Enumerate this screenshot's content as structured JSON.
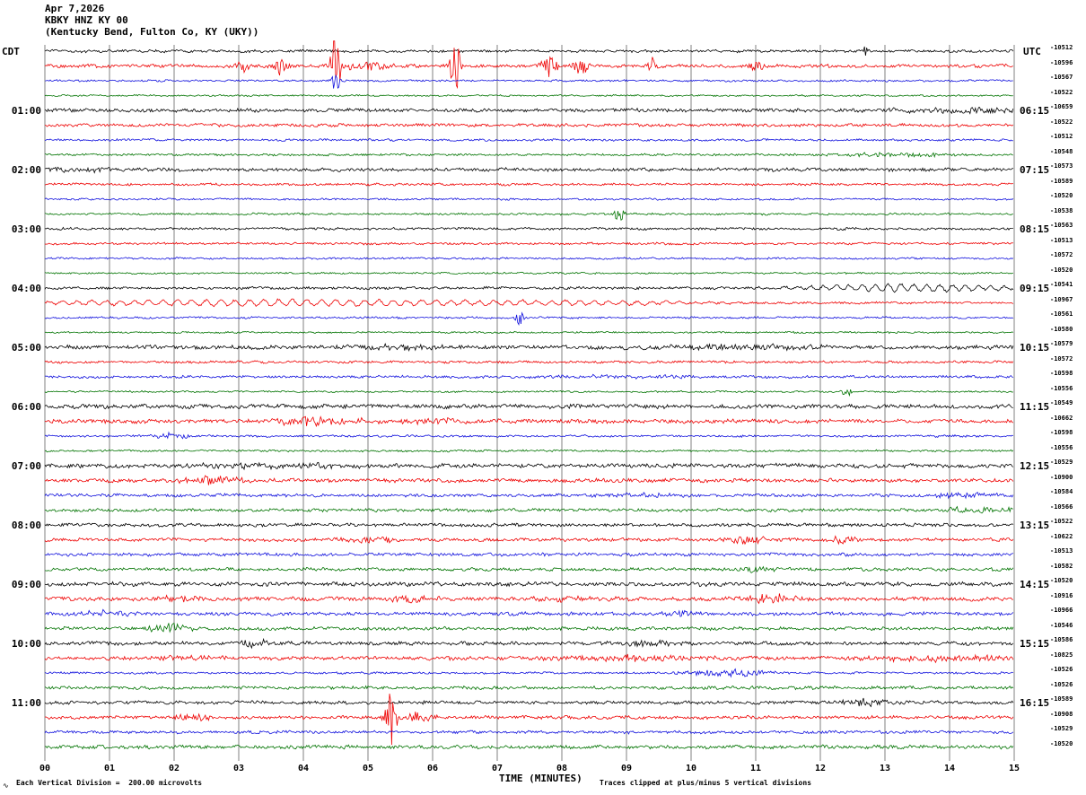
{
  "header": {
    "date": "Apr 7,2026",
    "station": "KBKY HNZ KY 00",
    "location": "(Kentucky Bend, Fulton Co, KY (UKY))"
  },
  "axes": {
    "left_tz": "CDT",
    "right_tz": "UTC",
    "x_label": "TIME (MINUTES)"
  },
  "footer": {
    "scale": "Each Vertical Division =  200.00 microvolts",
    "clip": "Traces clipped at plus/minus 5 vertical divisions",
    "corner_mark": "∿"
  },
  "chart_data": {
    "type": "line",
    "kind": "helicorder-seismogram",
    "title": "KBKY HNZ KY 00 (Kentucky Bend, Fulton Co, KY (UKY)) Apr 7,2026",
    "xlabel": "TIME (MINUTES)",
    "x_range_minutes": [
      0,
      15
    ],
    "minutes_per_row": 15,
    "division_microvolts": 200.0,
    "clip_divisions": 5,
    "grid": "vertical-only",
    "x_ticks": [
      "00",
      "01",
      "02",
      "03",
      "04",
      "05",
      "06",
      "07",
      "08",
      "09",
      "10",
      "11",
      "12",
      "13",
      "14",
      "15"
    ],
    "row_colors_cycle": [
      "black",
      "red",
      "blue",
      "green"
    ],
    "palette": {
      "black": "#000000",
      "red": "#ee0000",
      "blue": "#1111dd",
      "green": "#007300"
    },
    "left_hour_labels": [
      {
        "row": 4,
        "label": "01:00"
      },
      {
        "row": 8,
        "label": "02:00"
      },
      {
        "row": 12,
        "label": "03:00"
      },
      {
        "row": 16,
        "label": "04:00"
      },
      {
        "row": 20,
        "label": "05:00"
      },
      {
        "row": 24,
        "label": "06:00"
      },
      {
        "row": 28,
        "label": "07:00"
      },
      {
        "row": 32,
        "label": "08:00"
      },
      {
        "row": 36,
        "label": "09:00"
      },
      {
        "row": 40,
        "label": "10:00"
      },
      {
        "row": 44,
        "label": "11:00"
      }
    ],
    "right_hour_labels": [
      {
        "row": 4,
        "label": "06:15"
      },
      {
        "row": 8,
        "label": "07:15"
      },
      {
        "row": 12,
        "label": "08:15"
      },
      {
        "row": 16,
        "label": "09:15"
      },
      {
        "row": 20,
        "label": "10:15"
      },
      {
        "row": 24,
        "label": "11:15"
      },
      {
        "row": 28,
        "label": "12:15"
      },
      {
        "row": 32,
        "label": "13:15"
      },
      {
        "row": 36,
        "label": "14:15"
      },
      {
        "row": 40,
        "label": "15:15"
      },
      {
        "row": 44,
        "label": "16:15"
      }
    ],
    "rows": [
      {
        "color": "black",
        "offset": "-10512",
        "amp": 1.2,
        "events": [
          {
            "m": 12.7,
            "a": 7,
            "w": 0.05
          }
        ]
      },
      {
        "color": "red",
        "offset": "-10596",
        "amp": 1.5,
        "events": [
          {
            "m": 3.05,
            "a": 10,
            "w": 0.07
          },
          {
            "m": 3.65,
            "a": 12,
            "w": 0.06
          },
          {
            "m": 4.5,
            "a": 40,
            "w": 0.05
          },
          {
            "m": 5.0,
            "a": 5,
            "w": 0.3
          },
          {
            "m": 6.35,
            "a": 34,
            "w": 0.05
          },
          {
            "m": 7.8,
            "a": 14,
            "w": 0.09
          },
          {
            "m": 8.3,
            "a": 8,
            "w": 0.1
          },
          {
            "m": 9.4,
            "a": 10,
            "w": 0.07
          },
          {
            "m": 11.0,
            "a": 6,
            "w": 0.1
          }
        ]
      },
      {
        "color": "blue",
        "offset": "-10567",
        "amp": 0.9,
        "events": [
          {
            "m": 4.5,
            "a": 11,
            "w": 0.05
          }
        ]
      },
      {
        "color": "green",
        "offset": "-10522",
        "amp": 0.8,
        "events": []
      },
      {
        "color": "black",
        "offset": "-10659",
        "amp": 1.6,
        "events": [
          {
            "m": 14.2,
            "a": 3,
            "w": 0.7
          }
        ]
      },
      {
        "color": "red",
        "offset": "-10522",
        "amp": 1.4,
        "events": []
      },
      {
        "color": "blue",
        "offset": "-10512",
        "amp": 1.0,
        "events": []
      },
      {
        "color": "green",
        "offset": "-10548",
        "amp": 1.0,
        "events": [
          {
            "m": 13.0,
            "a": 2,
            "w": 0.8
          }
        ]
      },
      {
        "color": "black",
        "offset": "-10573",
        "amp": 1.6,
        "events": [
          {
            "m": 0.6,
            "a": 2.5,
            "w": 0.5
          }
        ]
      },
      {
        "color": "red",
        "offset": "-10589",
        "amp": 1.1,
        "events": []
      },
      {
        "color": "blue",
        "offset": "-10520",
        "amp": 0.9,
        "events": []
      },
      {
        "color": "green",
        "offset": "-10538",
        "amp": 0.9,
        "events": [
          {
            "m": 8.9,
            "a": 8,
            "w": 0.06
          }
        ]
      },
      {
        "color": "black",
        "offset": "-10563",
        "amp": 1.1,
        "events": []
      },
      {
        "color": "red",
        "offset": "-10513",
        "amp": 1.0,
        "events": []
      },
      {
        "color": "blue",
        "offset": "-10572",
        "amp": 0.9,
        "events": []
      },
      {
        "color": "green",
        "offset": "-10520",
        "amp": 0.8,
        "events": []
      },
      {
        "color": "black",
        "offset": "-10541",
        "amp": 1.2,
        "events": [
          {
            "t": "ring",
            "m": 13.3,
            "w": 1.1,
            "a": 4,
            "f": 5
          }
        ]
      },
      {
        "color": "red",
        "offset": "-10967",
        "amp": 1.0,
        "events": [
          {
            "t": "ring",
            "m": 3.5,
            "w": 3.0,
            "a": 3.2,
            "f": 4.5
          },
          {
            "t": "ring",
            "m": 8.5,
            "w": 1.5,
            "a": 1.5,
            "f": 4.5
          }
        ]
      },
      {
        "color": "blue",
        "offset": "-10561",
        "amp": 0.9,
        "events": [
          {
            "m": 7.35,
            "a": 9,
            "w": 0.05
          }
        ]
      },
      {
        "color": "green",
        "offset": "-10580",
        "amp": 0.8,
        "events": []
      },
      {
        "color": "black",
        "offset": "-10579",
        "amp": 1.8,
        "events": [
          {
            "m": 5.6,
            "a": 2,
            "w": 0.8
          },
          {
            "m": 10.8,
            "a": 2.5,
            "w": 1.2
          }
        ]
      },
      {
        "color": "red",
        "offset": "-10572",
        "amp": 1.1,
        "events": []
      },
      {
        "color": "blue",
        "offset": "-10598",
        "amp": 1.2,
        "events": [
          {
            "m": 9.0,
            "a": 1.5,
            "w": 1.0
          }
        ]
      },
      {
        "color": "green",
        "offset": "-10556",
        "amp": 0.8,
        "events": [
          {
            "m": 12.4,
            "a": 5,
            "w": 0.06
          }
        ]
      },
      {
        "color": "black",
        "offset": "-10549",
        "amp": 1.9,
        "events": []
      },
      {
        "color": "red",
        "offset": "-10662",
        "amp": 1.8,
        "events": [
          {
            "m": 4.2,
            "a": 5,
            "w": 0.5
          },
          {
            "m": 6.0,
            "a": 3,
            "w": 0.3
          }
        ]
      },
      {
        "color": "blue",
        "offset": "-10598",
        "amp": 1.0,
        "events": [
          {
            "m": 1.9,
            "a": 3.5,
            "w": 0.25
          }
        ]
      },
      {
        "color": "green",
        "offset": "-10556",
        "amp": 0.9,
        "events": []
      },
      {
        "color": "black",
        "offset": "-10529",
        "amp": 1.9,
        "events": [
          {
            "m": 3.5,
            "a": 2.5,
            "w": 1.0
          }
        ]
      },
      {
        "color": "red",
        "offset": "-10900",
        "amp": 1.7,
        "events": [
          {
            "m": 2.5,
            "a": 4,
            "w": 0.4
          }
        ]
      },
      {
        "color": "blue",
        "offset": "-10584",
        "amp": 1.4,
        "events": [
          {
            "m": 9.3,
            "a": 2,
            "w": 0.5
          },
          {
            "m": 14.2,
            "a": 3,
            "w": 0.3
          }
        ]
      },
      {
        "color": "green",
        "offset": "-10566",
        "amp": 1.4,
        "events": [
          {
            "m": 14.5,
            "a": 3,
            "w": 0.4
          }
        ]
      },
      {
        "color": "black",
        "offset": "-10522",
        "amp": 1.5,
        "events": []
      },
      {
        "color": "red",
        "offset": "-10622",
        "amp": 1.5,
        "events": [
          {
            "m": 5.0,
            "a": 3,
            "w": 0.4
          },
          {
            "m": 10.8,
            "a": 4,
            "w": 0.25
          },
          {
            "m": 12.4,
            "a": 4,
            "w": 0.2
          }
        ]
      },
      {
        "color": "blue",
        "offset": "-10513",
        "amp": 1.4,
        "events": []
      },
      {
        "color": "green",
        "offset": "-10582",
        "amp": 1.4,
        "events": [
          {
            "m": 11.0,
            "a": 3,
            "w": 0.3
          }
        ]
      },
      {
        "color": "black",
        "offset": "-10520",
        "amp": 1.8,
        "events": []
      },
      {
        "color": "red",
        "offset": "-10916",
        "amp": 1.8,
        "events": [
          {
            "m": 2.0,
            "a": 4,
            "w": 0.3
          },
          {
            "m": 5.6,
            "a": 4,
            "w": 0.3
          },
          {
            "m": 8.1,
            "a": 3,
            "w": 0.3
          },
          {
            "m": 11.3,
            "a": 4,
            "w": 0.3
          }
        ]
      },
      {
        "color": "blue",
        "offset": "-10966",
        "amp": 1.6,
        "events": [
          {
            "m": 1.0,
            "a": 3,
            "w": 0.3
          },
          {
            "m": 9.9,
            "a": 3,
            "w": 0.2
          }
        ]
      },
      {
        "color": "green",
        "offset": "-10546",
        "amp": 1.5,
        "events": [
          {
            "m": 1.9,
            "a": 5,
            "w": 0.2
          }
        ]
      },
      {
        "color": "black",
        "offset": "-10586",
        "amp": 1.6,
        "events": [
          {
            "m": 3.3,
            "a": 4,
            "w": 0.2
          },
          {
            "m": 9.3,
            "a": 3,
            "w": 0.4
          }
        ]
      },
      {
        "color": "red",
        "offset": "-10825",
        "amp": 1.7,
        "events": [
          {
            "m": 2.0,
            "a": 2.5,
            "w": 0.5
          },
          {
            "m": 9.0,
            "a": 3,
            "w": 0.8
          },
          {
            "m": 13.8,
            "a": 3.5,
            "w": 0.8
          }
        ]
      },
      {
        "color": "blue",
        "offset": "-10526",
        "amp": 1.0,
        "events": [
          {
            "m": 10.6,
            "a": 4,
            "w": 0.5
          }
        ]
      },
      {
        "color": "green",
        "offset": "-10526",
        "amp": 1.4,
        "events": []
      },
      {
        "color": "black",
        "offset": "-10589",
        "amp": 1.5,
        "events": [
          {
            "m": 12.7,
            "a": 4,
            "w": 0.3
          }
        ]
      },
      {
        "color": "red",
        "offset": "-10908",
        "amp": 1.5,
        "events": [
          {
            "m": 2.3,
            "a": 4,
            "w": 0.2
          },
          {
            "m": 5.35,
            "a": 34,
            "w": 0.06
          },
          {
            "m": 5.8,
            "a": 6,
            "w": 0.15
          }
        ]
      },
      {
        "color": "blue",
        "offset": "-10529",
        "amp": 1.3,
        "events": []
      },
      {
        "color": "green",
        "offset": "-10520",
        "amp": 1.6,
        "events": []
      }
    ]
  }
}
